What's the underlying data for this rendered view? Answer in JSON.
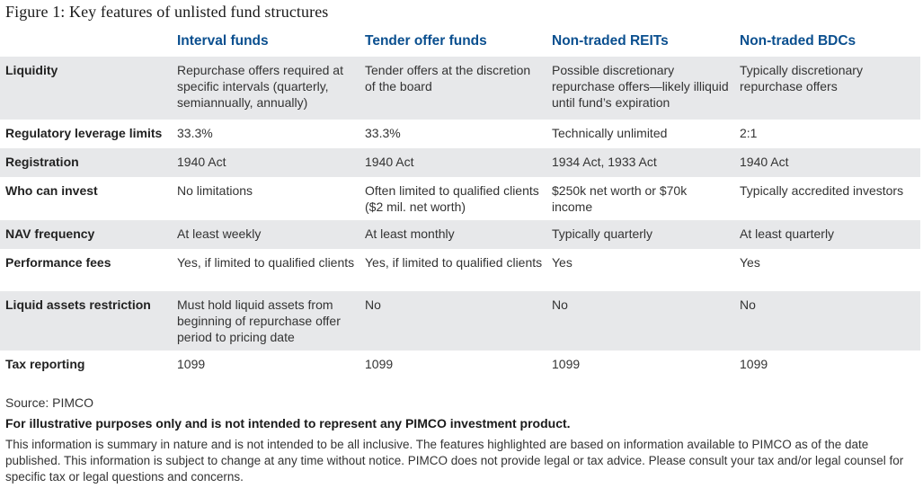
{
  "title": "Figure 1: Key features of unlisted fund structures",
  "columns": [
    "Interval funds",
    "Tender offer funds",
    "Non-traded REITs",
    "Non-traded BDCs"
  ],
  "rows": [
    {
      "label": "Liquidity",
      "cells": [
        "Repurchase offers required at specific intervals (quarterly, semiannually, annually)",
        "Tender offers at the discretion of the board",
        "Possible discretionary repurchase offers—likely illiquid until fund’s expiration",
        "Typically discretionary repurchase offers"
      ]
    },
    {
      "label": "Regulatory leverage limits",
      "cells": [
        "33.3%",
        "33.3%",
        "Technically unlimited",
        "2:1"
      ]
    },
    {
      "label": "Registration",
      "cells": [
        "1940 Act",
        "1940 Act",
        "1934 Act, 1933 Act",
        "1940 Act"
      ]
    },
    {
      "label": "Who can invest",
      "cells": [
        "No limitations",
        "Often limited to qualified clients ($2 mil. net worth)",
        "$250k net worth or $70k income",
        "Typically accredited investors"
      ]
    },
    {
      "label": "NAV frequency",
      "cells": [
        "At least weekly",
        "At least monthly",
        "Typically quarterly",
        "At least quarterly"
      ]
    },
    {
      "label": "Performance fees",
      "cells": [
        "Yes, if limited to qualified clients",
        "Yes, if limited to qualified clients",
        "Yes",
        "Yes"
      ]
    },
    {
      "label": "Liquid assets restriction",
      "cells": [
        "Must hold liquid assets from beginning of repurchase offer period to pricing date",
        "No",
        "No",
        "No"
      ]
    },
    {
      "label": "Tax reporting",
      "cells": [
        "1099",
        "1099",
        "1099",
        "1099"
      ]
    }
  ],
  "source": "Source: PIMCO",
  "disclaimer": "For illustrative purposes only and is not intended to represent any PIMCO investment product.",
  "note": "This information is summary in nature and is not intended to be all inclusive. The features highlighted are based on information available to PIMCO as of the date published. This information is subject to change at any time without notice. PIMCO does not provide legal or tax advice. Please consult your tax and/or legal counsel for specific tax or legal questions and concerns."
}
